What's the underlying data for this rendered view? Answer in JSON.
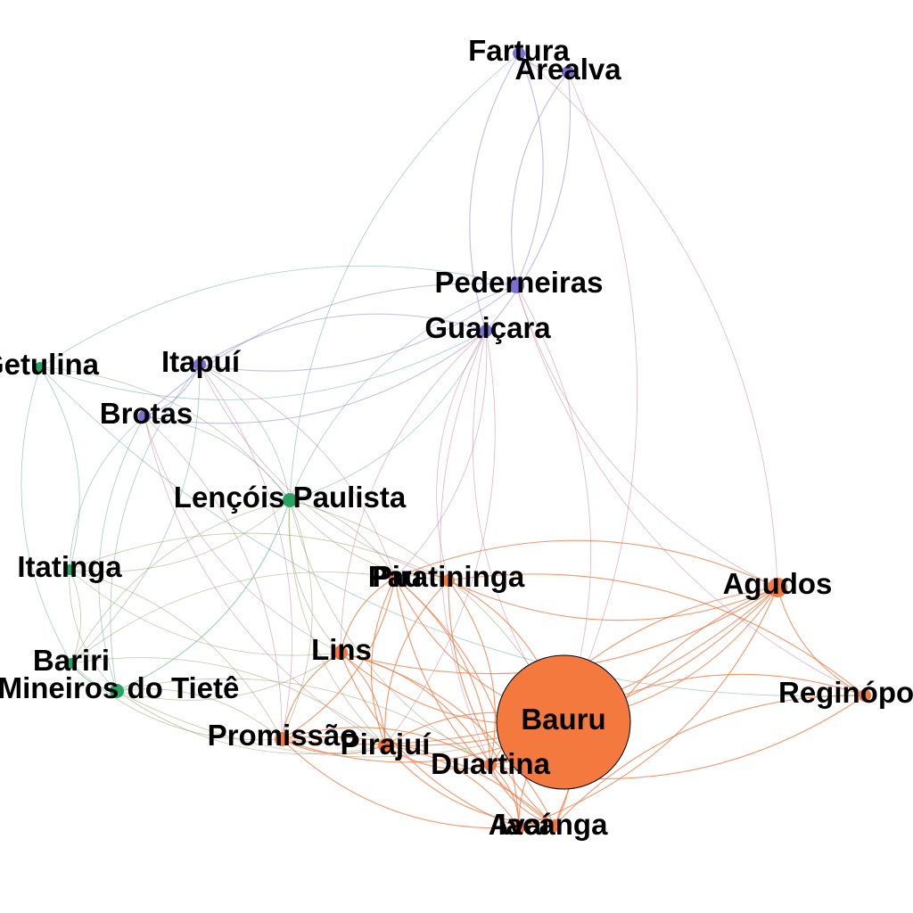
{
  "colors": {
    "purple": "#7b6fd6",
    "green": "#27a463",
    "orange": "#f4793f",
    "edge_purple": "#8e86da",
    "edge_green": "#4aa783",
    "edge_olive": "#8f9a62",
    "edge_orange": "#f2733a",
    "edge_pink": "#c7799a",
    "edge_teal": "#5ea39a"
  },
  "nodes": [
    {
      "id": "fartura",
      "label": "Fartura",
      "group": "purple"
    },
    {
      "id": "arealva",
      "label": "Arealva",
      "group": "purple"
    },
    {
      "id": "pederneiras",
      "label": "Pederneiras",
      "group": "purple"
    },
    {
      "id": "guaicara",
      "label": "Guaiçara",
      "group": "purple"
    },
    {
      "id": "itapui",
      "label": "Itapuí",
      "group": "purple"
    },
    {
      "id": "brotas",
      "label": "Brotas",
      "group": "purple"
    },
    {
      "id": "getulina",
      "label": "Getulina",
      "group": "green"
    },
    {
      "id": "lencois",
      "label": "Lençóis Paulista",
      "group": "green"
    },
    {
      "id": "itatinga",
      "label": "Itatinga",
      "group": "green"
    },
    {
      "id": "bariri",
      "label": "Bariri",
      "group": "green"
    },
    {
      "id": "mineiros",
      "label": "Mineiros do Tietê",
      "group": "green"
    },
    {
      "id": "pau",
      "label": "Pau",
      "group": "orange"
    },
    {
      "id": "piratininga",
      "label": "Piratininga",
      "group": "orange"
    },
    {
      "id": "agudos",
      "label": "Agudos",
      "group": "orange"
    },
    {
      "id": "lins",
      "label": "Lins",
      "group": "orange"
    },
    {
      "id": "bauru",
      "label": "Bauru",
      "group": "orange"
    },
    {
      "id": "reginopolis",
      "label": "Reginópolis",
      "group": "orange"
    },
    {
      "id": "promissao",
      "label": "Promissão",
      "group": "orange"
    },
    {
      "id": "pirajui",
      "label": "Pirajuí",
      "group": "orange"
    },
    {
      "id": "duartina",
      "label": "Duartina",
      "group": "orange"
    },
    {
      "id": "avai",
      "label": "Avaí",
      "group": "orange"
    },
    {
      "id": "iacanga",
      "label": "Iacanga",
      "group": "orange"
    }
  ],
  "edges": [
    [
      "fartura",
      "arealva",
      "edge_purple"
    ],
    [
      "fartura",
      "pederneiras",
      "edge_purple"
    ],
    [
      "arealva",
      "pederneiras",
      "edge_purple"
    ],
    [
      "arealva",
      "guaicara",
      "edge_purple"
    ],
    [
      "fartura",
      "guaicara",
      "edge_purple"
    ],
    [
      "pederneiras",
      "itapui",
      "edge_purple"
    ],
    [
      "pederneiras",
      "brotas",
      "edge_purple"
    ],
    [
      "guaicara",
      "brotas",
      "edge_purple"
    ],
    [
      "guaicara",
      "itapui",
      "edge_purple"
    ],
    [
      "itapui",
      "brotas",
      "edge_purple"
    ],
    [
      "fartura",
      "lencois",
      "edge_teal"
    ],
    [
      "arealva",
      "bauru",
      "edge_pink"
    ],
    [
      "pederneiras",
      "lencois",
      "edge_teal"
    ],
    [
      "guaicara",
      "lencois",
      "edge_teal"
    ],
    [
      "guaicara",
      "piratininga",
      "edge_pink"
    ],
    [
      "guaicara",
      "pau",
      "edge_pink"
    ],
    [
      "guaicara",
      "lins",
      "edge_pink"
    ],
    [
      "guaicara",
      "pirajui",
      "edge_pink"
    ],
    [
      "guaicara",
      "duartina",
      "edge_pink"
    ],
    [
      "pederneiras",
      "bauru",
      "edge_pink"
    ],
    [
      "pederneiras",
      "agudos",
      "edge_pink"
    ],
    [
      "guaicara",
      "getulina",
      "edge_teal"
    ],
    [
      "pederneiras",
      "getulina",
      "edge_teal"
    ],
    [
      "itapui",
      "lencois",
      "edge_teal"
    ],
    [
      "itapui",
      "mineiros",
      "edge_teal"
    ],
    [
      "itapui",
      "bariri",
      "edge_teal"
    ],
    [
      "brotas",
      "itatinga",
      "edge_teal"
    ],
    [
      "brotas",
      "lencois",
      "edge_teal"
    ],
    [
      "brotas",
      "mineiros",
      "edge_teal"
    ],
    [
      "brotas",
      "promissao",
      "edge_pink"
    ],
    [
      "brotas",
      "pirajui",
      "edge_pink"
    ],
    [
      "itapui",
      "pau",
      "edge_pink"
    ],
    [
      "itapui",
      "piratininga",
      "edge_pink"
    ],
    [
      "getulina",
      "itatinga",
      "edge_teal"
    ],
    [
      "getulina",
      "bariri",
      "edge_teal"
    ],
    [
      "getulina",
      "lencois",
      "edge_olive"
    ],
    [
      "getulina",
      "reginopolis",
      "edge_teal"
    ],
    [
      "lencois",
      "itatinga",
      "edge_olive"
    ],
    [
      "lencois",
      "bariri",
      "edge_olive"
    ],
    [
      "lencois",
      "mineiros",
      "edge_green"
    ],
    [
      "lencois",
      "lins",
      "edge_olive"
    ],
    [
      "lencois",
      "pau",
      "edge_olive"
    ],
    [
      "lencois",
      "piratininga",
      "edge_olive"
    ],
    [
      "lencois",
      "promissao",
      "edge_olive"
    ],
    [
      "lencois",
      "pirajui",
      "edge_olive"
    ],
    [
      "lencois",
      "bauru",
      "edge_olive"
    ],
    [
      "lencois",
      "duartina",
      "edge_olive"
    ],
    [
      "itatinga",
      "bariri",
      "edge_olive"
    ],
    [
      "itatinga",
      "mineiros",
      "edge_olive"
    ],
    [
      "itatinga",
      "piratininga",
      "edge_olive"
    ],
    [
      "itatinga",
      "lins",
      "edge_olive"
    ],
    [
      "itatinga",
      "promissao",
      "edge_olive"
    ],
    [
      "bariri",
      "mineiros",
      "edge_green"
    ],
    [
      "bariri",
      "pau",
      "edge_olive"
    ],
    [
      "bariri",
      "promissao",
      "edge_olive"
    ],
    [
      "bariri",
      "pirajui",
      "edge_olive"
    ],
    [
      "mineiros",
      "lins",
      "edge_olive"
    ],
    [
      "mineiros",
      "promissao",
      "edge_olive"
    ],
    [
      "mineiros",
      "pirajui",
      "edge_olive"
    ],
    [
      "mineiros",
      "duartina",
      "edge_olive"
    ],
    [
      "mineiros",
      "bauru",
      "edge_olive"
    ],
    [
      "pau",
      "piratininga",
      "edge_orange"
    ],
    [
      "pau",
      "lins",
      "edge_orange"
    ],
    [
      "pau",
      "promissao",
      "edge_orange"
    ],
    [
      "pau",
      "pirajui",
      "edge_orange"
    ],
    [
      "pau",
      "duartina",
      "edge_orange"
    ],
    [
      "pau",
      "bauru",
      "edge_orange"
    ],
    [
      "pau",
      "avai",
      "edge_orange"
    ],
    [
      "pau",
      "iacanga",
      "edge_orange"
    ],
    [
      "pau",
      "agudos",
      "edge_orange"
    ],
    [
      "piratininga",
      "agudos",
      "edge_orange"
    ],
    [
      "piratininga",
      "bauru",
      "edge_orange"
    ],
    [
      "piratininga",
      "pirajui",
      "edge_orange"
    ],
    [
      "piratininga",
      "duartina",
      "edge_orange"
    ],
    [
      "piratininga",
      "iacanga",
      "edge_orange"
    ],
    [
      "piratininga",
      "reginopolis",
      "edge_orange"
    ],
    [
      "lins",
      "promissao",
      "edge_orange"
    ],
    [
      "lins",
      "pirajui",
      "edge_orange"
    ],
    [
      "lins",
      "bauru",
      "edge_orange"
    ],
    [
      "lins",
      "duartina",
      "edge_orange"
    ],
    [
      "lins",
      "avai",
      "edge_orange"
    ],
    [
      "lins",
      "iacanga",
      "edge_orange"
    ],
    [
      "lins",
      "agudos",
      "edge_orange"
    ],
    [
      "agudos",
      "bauru",
      "edge_orange"
    ],
    [
      "agudos",
      "reginopolis",
      "edge_orange"
    ],
    [
      "agudos",
      "pirajui",
      "edge_orange"
    ],
    [
      "agudos",
      "duartina",
      "edge_orange"
    ],
    [
      "agudos",
      "promissao",
      "edge_orange"
    ],
    [
      "agudos",
      "iacanga",
      "edge_orange"
    ],
    [
      "agudos",
      "avai",
      "edge_orange"
    ],
    [
      "reginopolis",
      "bauru",
      "edge_orange"
    ],
    [
      "reginopolis",
      "duartina",
      "edge_orange"
    ],
    [
      "reginopolis",
      "iacanga",
      "edge_orange"
    ],
    [
      "bauru",
      "promissao",
      "edge_orange"
    ],
    [
      "bauru",
      "pirajui",
      "edge_orange"
    ],
    [
      "bauru",
      "duartina",
      "edge_orange"
    ],
    [
      "bauru",
      "avai",
      "edge_orange"
    ],
    [
      "bauru",
      "iacanga",
      "edge_orange"
    ],
    [
      "promissao",
      "pirajui",
      "edge_orange"
    ],
    [
      "promissao",
      "duartina",
      "edge_orange"
    ],
    [
      "promissao",
      "avai",
      "edge_orange"
    ],
    [
      "promissao",
      "iacanga",
      "edge_orange"
    ],
    [
      "pirajui",
      "duartina",
      "edge_orange"
    ],
    [
      "pirajui",
      "avai",
      "edge_orange"
    ],
    [
      "pirajui",
      "iacanga",
      "edge_orange"
    ],
    [
      "duartina",
      "avai",
      "edge_orange"
    ],
    [
      "duartina",
      "iacanga",
      "edge_orange"
    ],
    [
      "avai",
      "iacanga",
      "edge_orange"
    ],
    [
      "pederneiras",
      "reginopolis",
      "edge_pink"
    ],
    [
      "fartura",
      "agudos",
      "edge_pink"
    ],
    [
      "guaicara",
      "bauru",
      "edge_pink"
    ],
    [
      "itapui",
      "promissao",
      "edge_pink"
    ],
    [
      "brotas",
      "lins",
      "edge_pink"
    ]
  ]
}
